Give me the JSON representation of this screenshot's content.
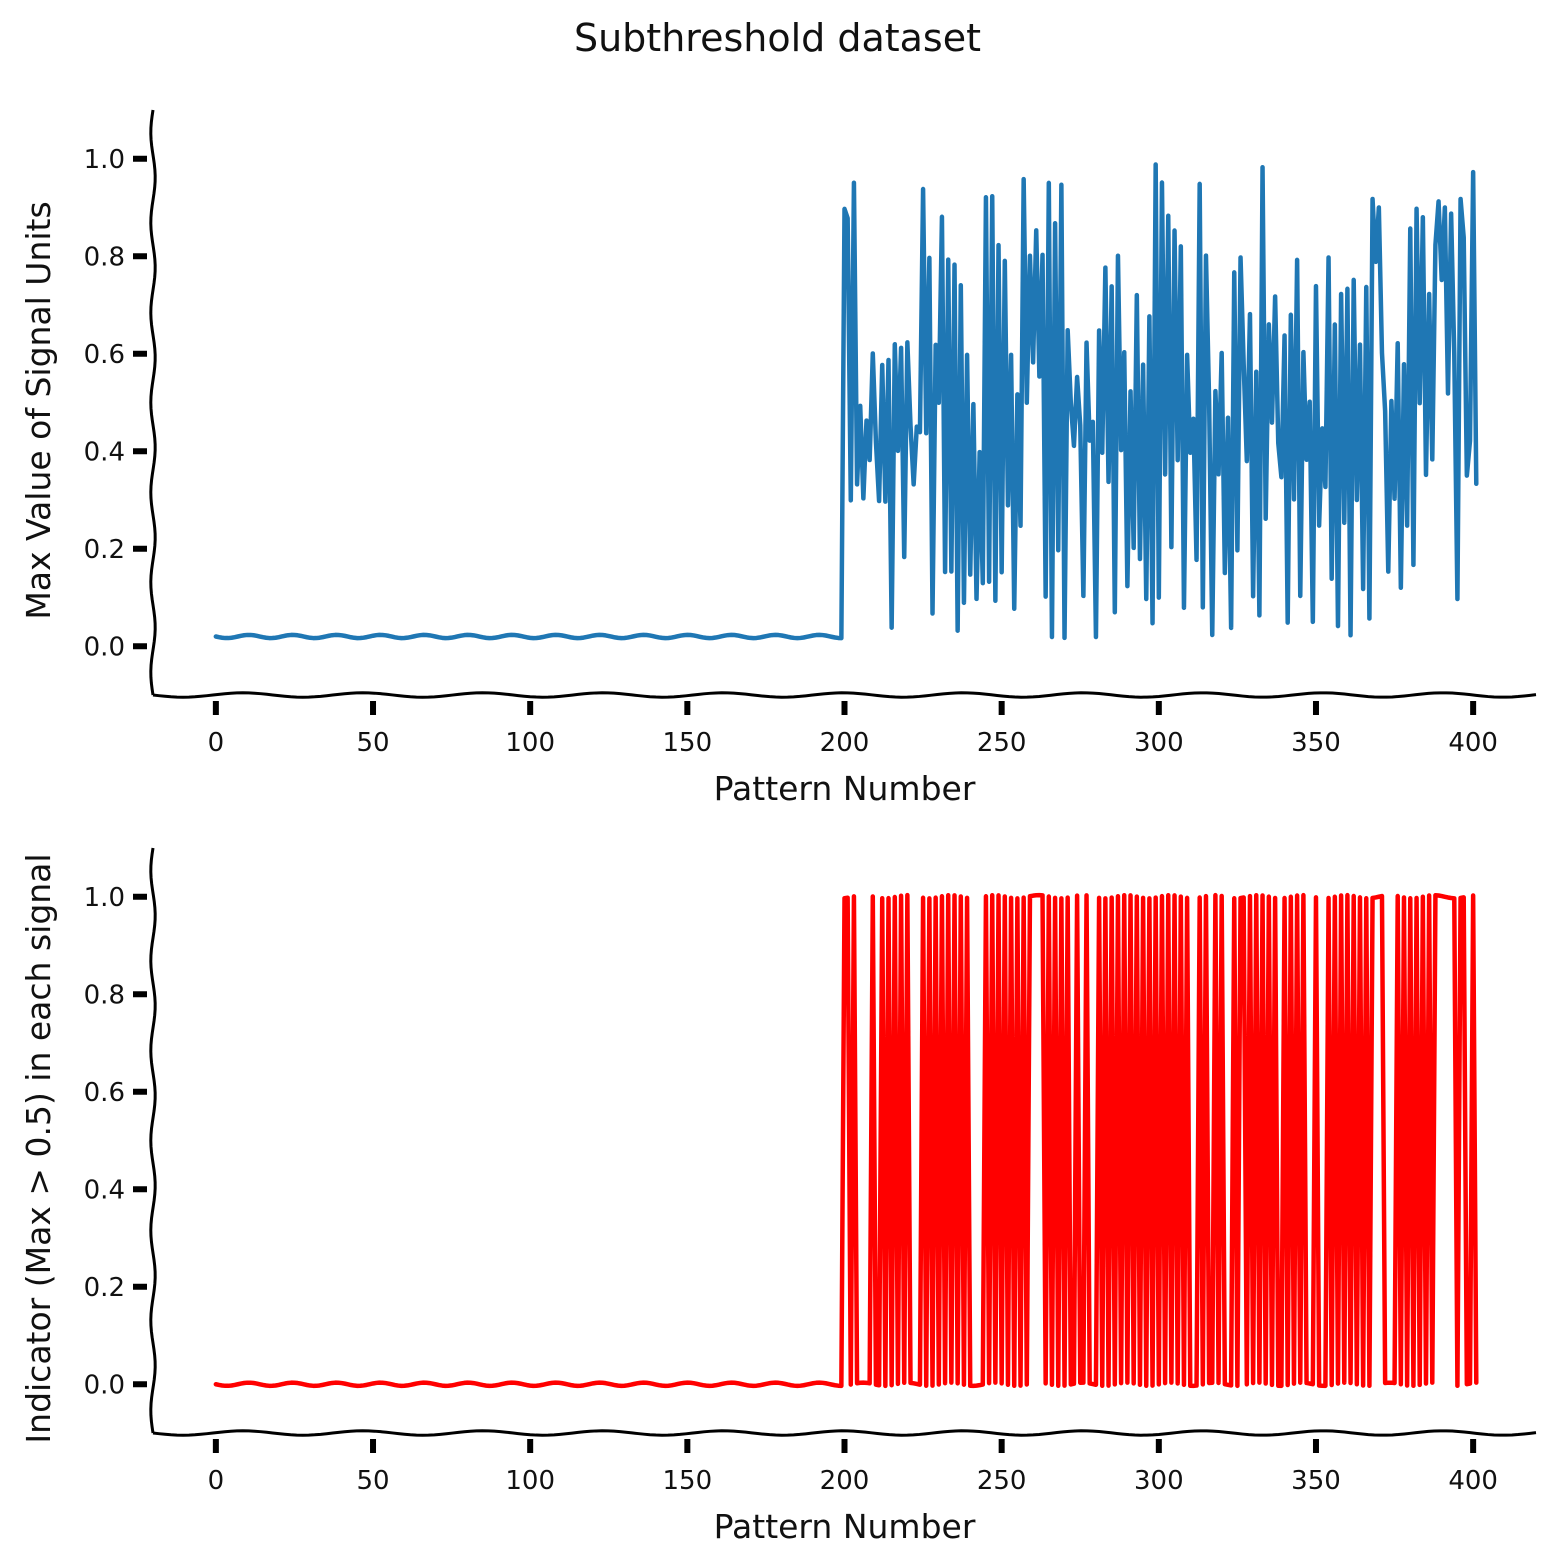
{
  "figure": {
    "suptitle": "Subthreshold dataset"
  },
  "chart_data": [
    {
      "type": "line",
      "xlabel": "Pattern Number",
      "ylabel": "Max Value of Signal Units",
      "xlim": [
        -20,
        420
      ],
      "ylim": [
        -0.1,
        1.1
      ],
      "xticks": [
        0,
        50,
        100,
        150,
        200,
        250,
        300,
        350,
        400
      ],
      "yticks": [
        0.0,
        0.2,
        0.4,
        0.6,
        0.8,
        1.0
      ],
      "color": "#1f77b4",
      "grid": false,
      "legend": "none",
      "series": [
        {
          "values": [
            0.02,
            0.02,
            0.02,
            0.02,
            0.02,
            0.02,
            0.02,
            0.02,
            0.02,
            0.02,
            0.02,
            0.02,
            0.02,
            0.02,
            0.02,
            0.02,
            0.02,
            0.02,
            0.02,
            0.02,
            0.02,
            0.02,
            0.02,
            0.02,
            0.02,
            0.02,
            0.02,
            0.02,
            0.02,
            0.02,
            0.02,
            0.02,
            0.02,
            0.02,
            0.02,
            0.02,
            0.02,
            0.02,
            0.02,
            0.02,
            0.02,
            0.02,
            0.02,
            0.02,
            0.02,
            0.02,
            0.02,
            0.02,
            0.02,
            0.02,
            0.02,
            0.02,
            0.02,
            0.02,
            0.02,
            0.02,
            0.02,
            0.02,
            0.02,
            0.02,
            0.02,
            0.02,
            0.02,
            0.02,
            0.02,
            0.02,
            0.02,
            0.02,
            0.02,
            0.02,
            0.02,
            0.02,
            0.02,
            0.02,
            0.02,
            0.02,
            0.02,
            0.02,
            0.02,
            0.02,
            0.02,
            0.02,
            0.02,
            0.02,
            0.02,
            0.02,
            0.02,
            0.02,
            0.02,
            0.02,
            0.02,
            0.02,
            0.02,
            0.02,
            0.02,
            0.02,
            0.02,
            0.02,
            0.02,
            0.02,
            0.02,
            0.02,
            0.02,
            0.02,
            0.02,
            0.02,
            0.02,
            0.02,
            0.02,
            0.02,
            0.02,
            0.02,
            0.02,
            0.02,
            0.02,
            0.02,
            0.02,
            0.02,
            0.02,
            0.02,
            0.02,
            0.02,
            0.02,
            0.02,
            0.02,
            0.02,
            0.02,
            0.02,
            0.02,
            0.02,
            0.02,
            0.02,
            0.02,
            0.02,
            0.02,
            0.02,
            0.02,
            0.02,
            0.02,
            0.02,
            0.02,
            0.02,
            0.02,
            0.02,
            0.02,
            0.02,
            0.02,
            0.02,
            0.02,
            0.02,
            0.02,
            0.02,
            0.02,
            0.02,
            0.02,
            0.02,
            0.02,
            0.02,
            0.02,
            0.02,
            0.02,
            0.02,
            0.02,
            0.02,
            0.02,
            0.02,
            0.02,
            0.02,
            0.02,
            0.02,
            0.02,
            0.02,
            0.02,
            0.02,
            0.02,
            0.02,
            0.02,
            0.02,
            0.02,
            0.02,
            0.02,
            0.02,
            0.02,
            0.02,
            0.02,
            0.02,
            0.02,
            0.02,
            0.02,
            0.02,
            0.02,
            0.02,
            0.02,
            0.02,
            0.02,
            0.02,
            0.02,
            0.02,
            0.02,
            0.02,
            0.9,
            0.88,
            0.3,
            0.95,
            0.33,
            0.49,
            0.3,
            0.46,
            0.38,
            0.6,
            0.42,
            0.3,
            0.58,
            0.3,
            0.59,
            0.04,
            0.62,
            0.4,
            0.61,
            0.18,
            0.62,
            0.45,
            0.33,
            0.45,
            0.44,
            0.94,
            0.44,
            0.8,
            0.07,
            0.62,
            0.5,
            0.88,
            0.15,
            0.79,
            0.15,
            0.78,
            0.03,
            0.74,
            0.09,
            0.6,
            0.15,
            0.5,
            0.1,
            0.4,
            0.13,
            0.92,
            0.13,
            0.92,
            0.09,
            0.82,
            0.15,
            0.79,
            0.29,
            0.6,
            0.08,
            0.52,
            0.25,
            0.96,
            0.5,
            0.8,
            0.58,
            0.85,
            0.55,
            0.8,
            0.1,
            0.95,
            0.02,
            0.87,
            0.2,
            0.95,
            0.02,
            0.65,
            0.5,
            0.41,
            0.55,
            0.45,
            0.1,
            0.62,
            0.42,
            0.46,
            0.02,
            0.65,
            0.4,
            0.78,
            0.34,
            0.74,
            0.07,
            0.8,
            0.4,
            0.6,
            0.12,
            0.52,
            0.2,
            0.72,
            0.18,
            0.58,
            0.1,
            0.68,
            0.05,
            0.99,
            0.1,
            0.95,
            0.35,
            0.88,
            0.2,
            0.85,
            0.38,
            0.82,
            0.08,
            0.6,
            0.4,
            0.47,
            0.18,
            0.95,
            0.08,
            0.8,
            0.5,
            0.02,
            0.52,
            0.35,
            0.6,
            0.15,
            0.47,
            0.04,
            0.77,
            0.2,
            0.8,
            0.58,
            0.38,
            0.68,
            0.1,
            0.56,
            0.06,
            0.98,
            0.26,
            0.66,
            0.46,
            0.72,
            0.42,
            0.35,
            0.64,
            0.05,
            0.68,
            0.3,
            0.79,
            0.1,
            0.6,
            0.38,
            0.5,
            0.05,
            0.74,
            0.25,
            0.45,
            0.33,
            0.8,
            0.14,
            0.66,
            0.04,
            0.72,
            0.25,
            0.73,
            0.02,
            0.75,
            0.3,
            0.62,
            0.12,
            0.74,
            0.06,
            0.92,
            0.79,
            0.9,
            0.6,
            0.48,
            0.15,
            0.5,
            0.3,
            0.62,
            0.12,
            0.58,
            0.25,
            0.86,
            0.17,
            0.9,
            0.5,
            0.88,
            0.35,
            0.72,
            0.38,
            0.82,
            0.91,
            0.75,
            0.9,
            0.52,
            0.89,
            0.6,
            0.1,
            0.92,
            0.84,
            0.35,
            0.42,
            0.97,
            0.33
          ]
        }
      ]
    },
    {
      "type": "line",
      "xlabel": "Pattern Number",
      "ylabel": "Indicator (Max > 0.5) in each signal",
      "xlim": [
        -20,
        420
      ],
      "ylim": [
        -0.1,
        1.1
      ],
      "xticks": [
        0,
        50,
        100,
        150,
        200,
        250,
        300,
        350,
        400
      ],
      "yticks": [
        0.0,
        0.2,
        0.4,
        0.6,
        0.8,
        1.0
      ],
      "color": "#ff0000",
      "grid": false,
      "legend": "none",
      "threshold": 0.5,
      "series": [
        {
          "values": "indicator of top panel values (1 if value > 0.5 else 0)"
        }
      ]
    }
  ]
}
